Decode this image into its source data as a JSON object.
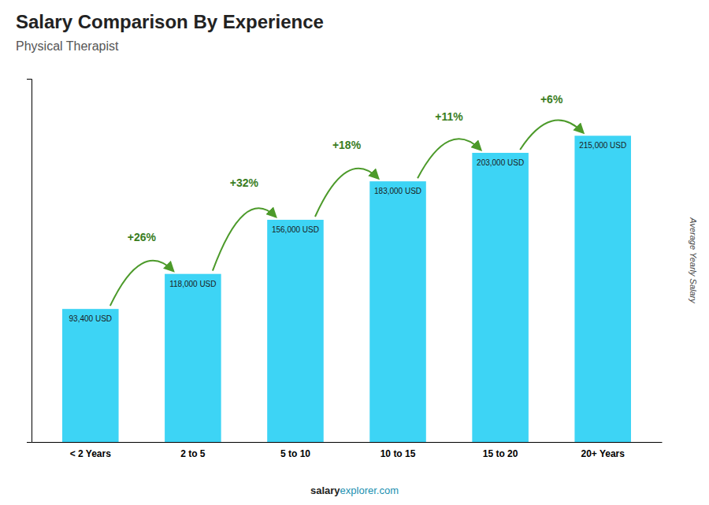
{
  "chart_data": {
    "type": "bar",
    "title": "Salary Comparison By Experience",
    "subtitle": "Physical Therapist",
    "categories": [
      "< 2 Years",
      "2 to 5",
      "5 to 10",
      "10 to 15",
      "15 to 20",
      "20+ Years"
    ],
    "values": [
      93400,
      118000,
      156000,
      183000,
      203000,
      215000
    ],
    "value_labels": [
      "93,400 USD",
      "118,000 USD",
      "156,000 USD",
      "183,000 USD",
      "203,000 USD",
      "215,000 USD"
    ],
    "data_labels": true,
    "annotations": [
      "+26%",
      "+32%",
      "+18%",
      "+11%",
      "+6%"
    ],
    "ylabel": "Average Yearly Salary",
    "footer": [
      "salary",
      "explorer.com"
    ],
    "color": "#3DD4F5",
    "ylim": [
      0,
      255000
    ],
    "grid": false,
    "tick_labels": "x"
  }
}
